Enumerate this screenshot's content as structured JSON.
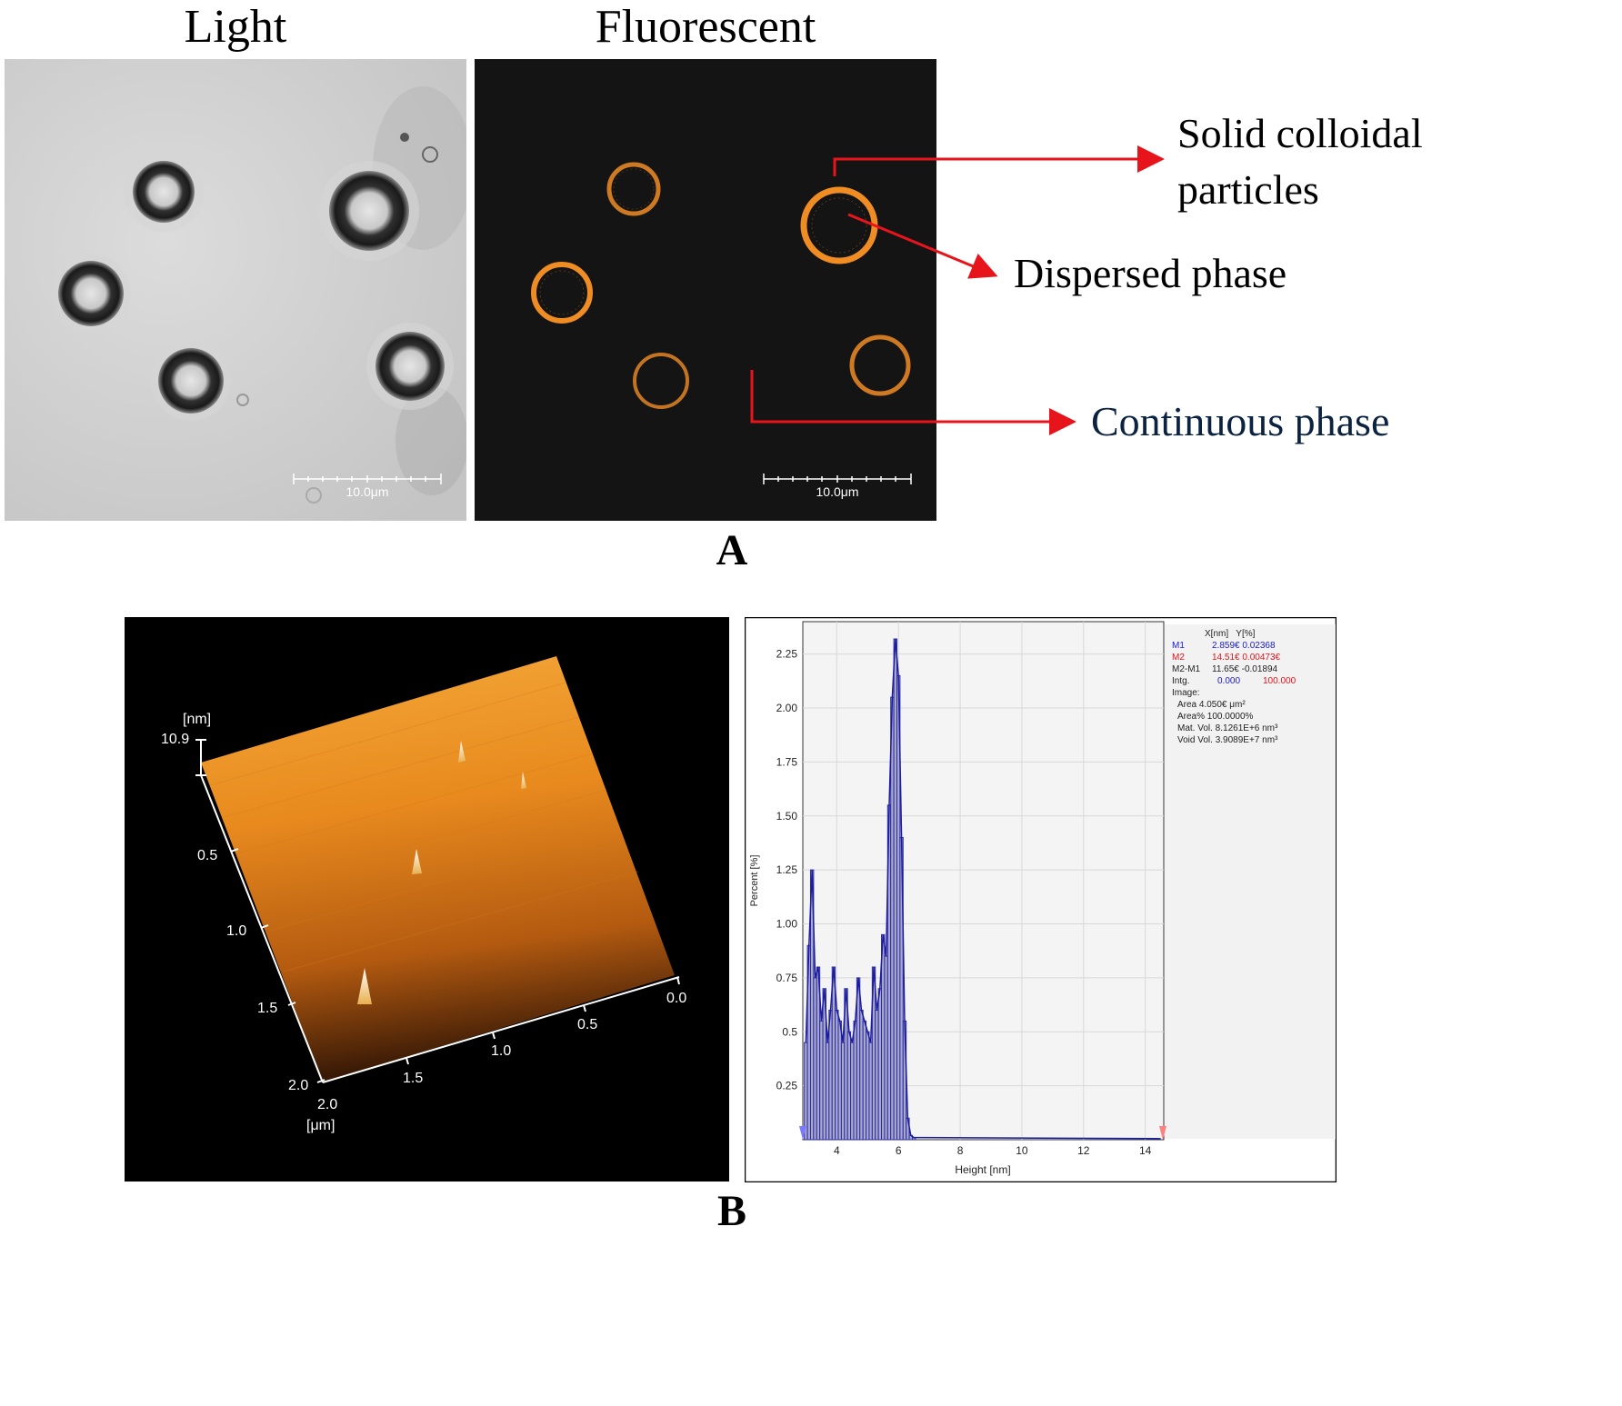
{
  "panel_a": {
    "letter": "A",
    "light_title": "Light",
    "fluor_title": "Fluorescent",
    "scalebar_light": "10.0μm",
    "scalebar_fluor": "10.0μm",
    "annotations": {
      "solid_line1": "Solid colloidal",
      "solid_line2": "particles",
      "dispersed": "Dispersed phase",
      "continuous": "Continuous phase"
    },
    "colors": {
      "arrow": "#e8141b",
      "continuous_text": "#0b2340",
      "fluor_ring": "#f08c24"
    }
  },
  "panel_b": {
    "letter": "B",
    "afm": {
      "z_unit": "[nm]",
      "z_max": "10.9",
      "y_ticks": [
        "0.5",
        "1.0",
        "1.5",
        "2.0"
      ],
      "x_ticks": [
        "0.0",
        "0.5",
        "1.0",
        "1.5",
        "2.0"
      ],
      "xy_unit": "[μm]"
    },
    "histogram": {
      "ylabel": "Percent [%]",
      "xlabel": "Height [nm]",
      "y_ticks": [
        "2.25",
        "2.00",
        "1.75",
        "1.50",
        "1.25",
        "1.00",
        "0.75",
        "0.5",
        "0.25"
      ],
      "x_ticks": [
        "4",
        "6",
        "8",
        "10",
        "12",
        "14"
      ],
      "stats_header": "X[nm]   Y[%]",
      "stats": [
        {
          "label": "M1",
          "value": "2.859€ 0.02368",
          "color": "#1a1ad6"
        },
        {
          "label": "M2",
          "value": "14.51€ 0.00473€",
          "color": "#e0141b"
        },
        {
          "label": "M2-M1",
          "value": "11.65€ -0.01894",
          "color": "#222222"
        },
        {
          "label": "Intg.",
          "value": "0.000 100.000",
          "color": "#222222"
        }
      ],
      "intg_value1": "0.000",
      "intg_value2": "100.000",
      "image_label": "Image:",
      "image_stats": [
        "Area   4.050€ μm²",
        "Area%  100.0000%",
        "Mat. Vol. 8.1261E+6 nm³",
        "Void Vol. 3.9089E+7 nm³"
      ]
    }
  },
  "chart_data": {
    "type": "bar",
    "xlabel": "Height [nm]",
    "ylabel": "Percent [%]",
    "xlim": [
      2.9,
      14.6
    ],
    "ylim": [
      0,
      2.4
    ],
    "grid": true,
    "x": [
      3.0,
      3.1,
      3.2,
      3.3,
      3.4,
      3.5,
      3.6,
      3.7,
      3.8,
      3.9,
      4.0,
      4.1,
      4.2,
      4.3,
      4.4,
      4.5,
      4.6,
      4.7,
      4.8,
      4.9,
      5.0,
      5.1,
      5.2,
      5.3,
      5.4,
      5.5,
      5.6,
      5.7,
      5.8,
      5.9,
      6.0,
      6.1,
      6.2,
      6.3,
      6.4,
      6.5
    ],
    "values": [
      0.45,
      0.9,
      1.25,
      0.75,
      0.8,
      0.55,
      0.7,
      0.45,
      0.6,
      0.8,
      0.6,
      0.55,
      0.45,
      0.7,
      0.5,
      0.45,
      0.55,
      0.75,
      0.6,
      0.55,
      0.5,
      0.45,
      0.8,
      0.6,
      0.7,
      0.95,
      0.85,
      1.55,
      2.05,
      2.32,
      2.15,
      1.4,
      0.55,
      0.1,
      0.02,
      0.01
    ]
  }
}
